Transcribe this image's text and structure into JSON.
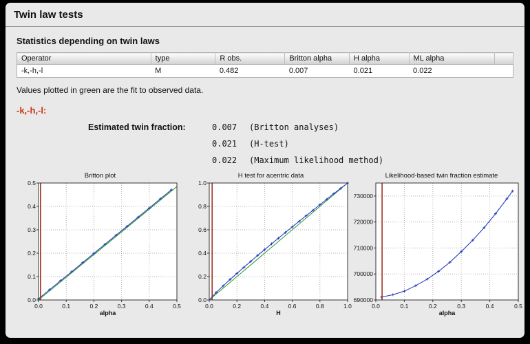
{
  "window": {
    "title": "Twin law tests"
  },
  "section": {
    "heading": "Statistics depending on twin laws",
    "note": "Values plotted in green are the fit to observed data."
  },
  "table": {
    "headers": [
      "Operator",
      "type",
      "R obs.",
      "Britton alpha",
      "H alpha",
      "ML alpha"
    ],
    "rows": [
      [
        "-k,-h,-l",
        "M",
        "0.482",
        "0.007",
        "0.021",
        "0.022"
      ]
    ]
  },
  "twin_law": {
    "label": "-k,-h,-l:",
    "accent_color": "#cc3311",
    "fraction_heading": "Estimated twin fraction:",
    "estimates": [
      {
        "value": "0.007",
        "method": "(Britton analyses)"
      },
      {
        "value": "0.021",
        "method": "(H-test)"
      },
      {
        "value": "0.022",
        "method": "(Maximum likelihood method)"
      }
    ]
  },
  "chart_data": [
    {
      "type": "line",
      "title": "Britton plot",
      "xlabel": "alpha",
      "xlim": [
        0,
        0.5
      ],
      "ylim": [
        0,
        0.5
      ],
      "xticks": {
        "values": [
          0,
          0.1,
          0.2,
          0.3,
          0.4,
          0.5
        ],
        "labels": [
          "0.0",
          "0.1",
          "0.2",
          "0.3",
          "0.4",
          "0.5"
        ]
      },
      "yticks": {
        "values": [
          0,
          0.1,
          0.2,
          0.3,
          0.4,
          0.5
        ],
        "labels": [
          "0.0",
          "0.1",
          "0.2",
          "0.3",
          "0.4",
          "0.5"
        ]
      },
      "grid": true,
      "left_margin": 32,
      "marker_x": 0.007,
      "marker_color": "#a03325",
      "series": [
        {
          "name": "fit",
          "color": "#2ca02c",
          "marker": false,
          "x": [
            0,
            0.5
          ],
          "y": [
            0,
            0.485
          ]
        },
        {
          "name": "observed",
          "color": "#2b3fbf",
          "marker": true,
          "x": [
            0,
            0.04,
            0.08,
            0.12,
            0.16,
            0.2,
            0.24,
            0.28,
            0.32,
            0.36,
            0.4,
            0.44,
            0.48
          ],
          "y": [
            0.005,
            0.044,
            0.083,
            0.121,
            0.16,
            0.199,
            0.238,
            0.277,
            0.315,
            0.354,
            0.393,
            0.432,
            0.471
          ]
        }
      ]
    },
    {
      "type": "line",
      "title": "H test for acentric data",
      "xlabel": "H",
      "xlim": [
        0,
        1.0
      ],
      "ylim": [
        0,
        1.0
      ],
      "xticks": {
        "values": [
          0,
          0.2,
          0.4,
          0.6,
          0.8,
          1.0
        ],
        "labels": [
          "0.0",
          "0.2",
          "0.4",
          "0.6",
          "0.8",
          "1.0"
        ]
      },
      "yticks": {
        "values": [
          0,
          0.2,
          0.4,
          0.6,
          0.8,
          1.0
        ],
        "labels": [
          "0.0",
          "0.2",
          "0.4",
          "0.6",
          "0.8",
          "1.0"
        ]
      },
      "grid": true,
      "left_margin": 32,
      "marker_x": 0.021,
      "marker_color": "#a03325",
      "series": [
        {
          "name": "fit",
          "color": "#2ca02c",
          "marker": false,
          "x": [
            0,
            0.2,
            0.4,
            0.6,
            0.8,
            1.0
          ],
          "y": [
            0,
            0.2,
            0.4,
            0.6,
            0.8,
            1.0
          ]
        },
        {
          "name": "observed",
          "color": "#2b3fbf",
          "marker": true,
          "x": [
            0,
            0.05,
            0.1,
            0.15,
            0.2,
            0.25,
            0.3,
            0.35,
            0.4,
            0.45,
            0.5,
            0.55,
            0.6,
            0.65,
            0.7,
            0.75,
            0.8,
            0.85,
            0.9,
            0.95,
            1.0
          ],
          "y": [
            0,
            0.064,
            0.12,
            0.175,
            0.227,
            0.279,
            0.33,
            0.381,
            0.43,
            0.48,
            0.528,
            0.577,
            0.625,
            0.673,
            0.72,
            0.767,
            0.815,
            0.861,
            0.908,
            0.954,
            1.0
          ]
        }
      ]
    },
    {
      "type": "line",
      "title": "Likelihood-based twin fraction estimate",
      "xlabel": "alpha",
      "xlim": [
        0,
        0.5
      ],
      "ylim": [
        690000,
        735000
      ],
      "xticks": {
        "values": [
          0,
          0.1,
          0.2,
          0.3,
          0.4,
          0.5
        ],
        "labels": [
          "0.0",
          "0.1",
          "0.2",
          "0.3",
          "0.4",
          "0.5"
        ]
      },
      "yticks": {
        "values": [
          690000,
          700000,
          710000,
          720000,
          730000
        ],
        "labels": [
          "690000",
          "700000",
          "710000",
          "720000",
          "730000"
        ]
      },
      "grid": true,
      "left_margin": 26,
      "marker_x": 0.022,
      "marker_color": "#a03325",
      "series": [
        {
          "name": "neg-log-likelihood",
          "color": "#2b3fbf",
          "marker": true,
          "x": [
            0.02,
            0.06,
            0.1,
            0.14,
            0.18,
            0.22,
            0.26,
            0.3,
            0.34,
            0.38,
            0.42,
            0.46,
            0.48
          ],
          "y": [
            691100,
            692000,
            693400,
            695500,
            698000,
            701000,
            704500,
            708600,
            713000,
            717800,
            723200,
            728900,
            731900
          ]
        }
      ]
    }
  ]
}
